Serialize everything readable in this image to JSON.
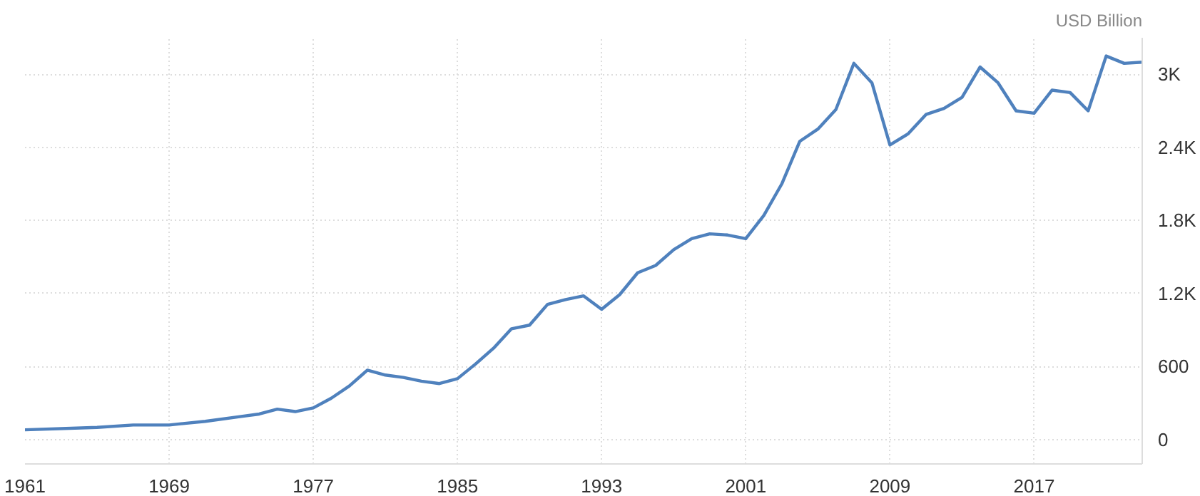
{
  "chart_data": {
    "type": "line",
    "ylabel": "USD Billion",
    "x": [
      1961,
      1965,
      1967,
      1969,
      1971,
      1973,
      1974,
      1975,
      1976,
      1977,
      1978,
      1979,
      1980,
      1981,
      1982,
      1983,
      1984,
      1985,
      1986,
      1987,
      1988,
      1989,
      1990,
      1991,
      1992,
      1993,
      1994,
      1995,
      1996,
      1997,
      1998,
      1999,
      2000,
      2001,
      2002,
      2003,
      2004,
      2005,
      2006,
      2007,
      2008,
      2009,
      2010,
      2011,
      2012,
      2013,
      2014,
      2015,
      2016,
      2017,
      2018,
      2019,
      2020,
      2021,
      2022,
      2023
    ],
    "series": [
      {
        "color": "#4f81bd",
        "values": [
          80,
          100,
          120,
          120,
          150,
          190,
          210,
          250,
          230,
          260,
          340,
          440,
          570,
          530,
          510,
          480,
          460,
          500,
          620,
          750,
          910,
          940,
          1110,
          1150,
          1180,
          1070,
          1190,
          1370,
          1430,
          1560,
          1650,
          1690,
          1680,
          1650,
          1840,
          2100,
          2450,
          2550,
          2710,
          3090,
          2930,
          2420,
          2510,
          2670,
          2720,
          2810,
          3060,
          2930,
          2700,
          2680,
          2870,
          2850,
          2700,
          3150,
          3090,
          3100
        ]
      }
    ],
    "xlim": [
      1961,
      2023
    ],
    "xticks": [
      1961,
      1969,
      1977,
      1985,
      1993,
      2001,
      2009,
      2017
    ],
    "ylim": [
      -200,
      3300
    ],
    "yticks": [
      0,
      600,
      {
        "value": 1200,
        "label": "1.2K"
      },
      {
        "value": 1800,
        "label": "1.8K"
      },
      {
        "value": 2400,
        "label": "2.4K"
      },
      {
        "value": 3000,
        "label": "3K"
      }
    ],
    "grid": true,
    "marker": "none",
    "line_style": "solid"
  }
}
